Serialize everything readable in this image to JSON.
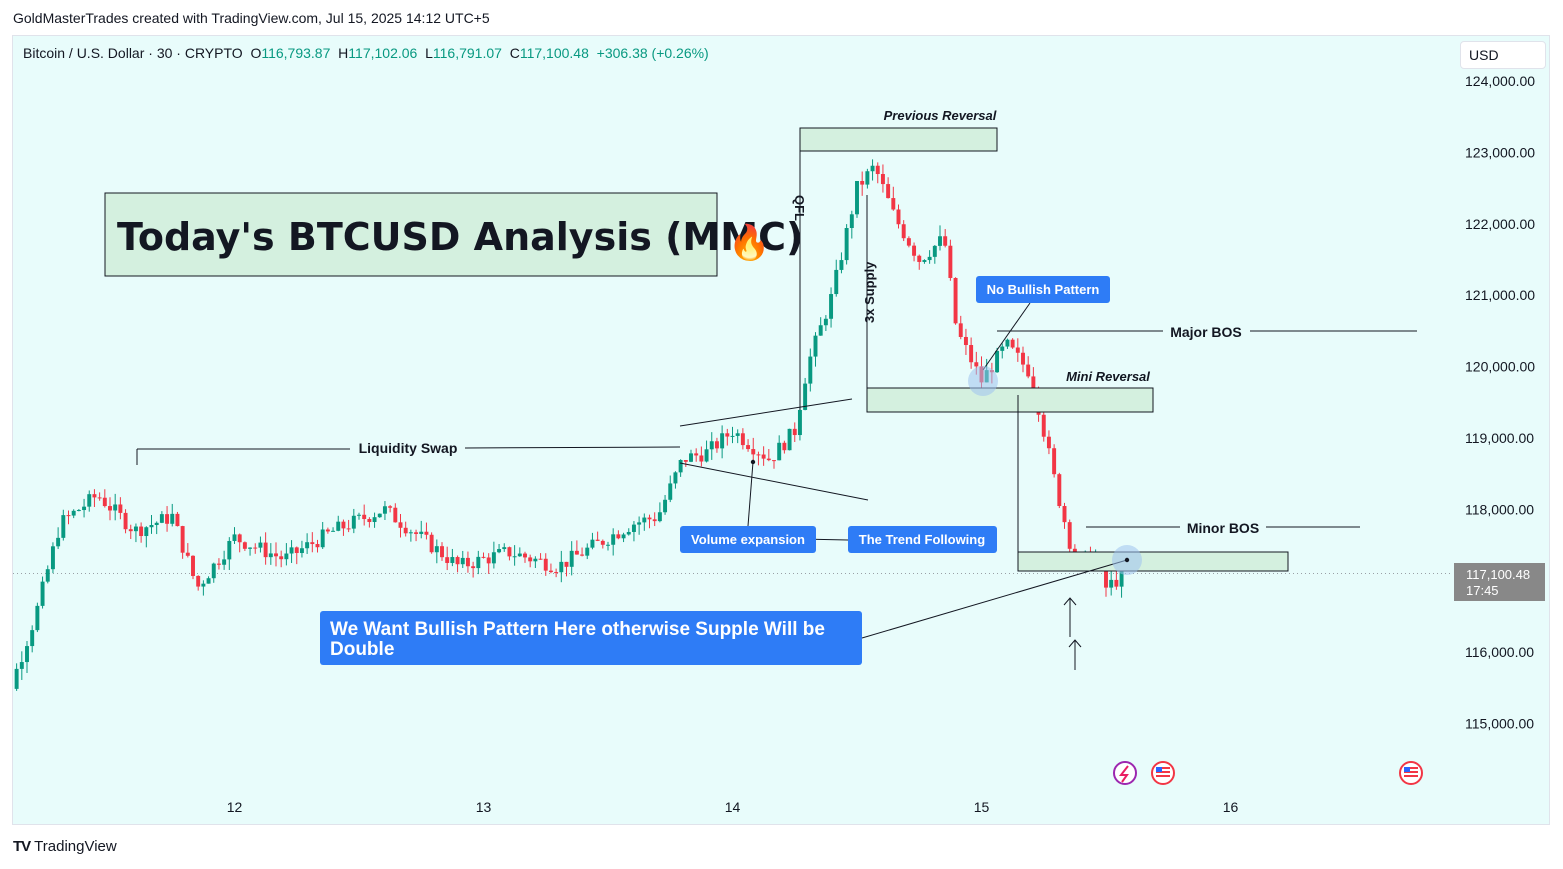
{
  "credit": "GoldMasterTrades created with TradingView.com, Jul 15, 2025 14:12 UTC+5",
  "legend": {
    "symbol": "Bitcoin / U.S. Dollar · 30 · CRYPTO",
    "o_label": "O",
    "o": "116,793.87",
    "h_label": "H",
    "h": "117,102.06",
    "l_label": "L",
    "l": "116,791.07",
    "c_label": "C",
    "c": "117,100.48",
    "change": "+306.38 (+0.26%)"
  },
  "currency": "USD",
  "footer": {
    "logo_mark": "TV",
    "brand": "TradingView"
  },
  "price_label": {
    "price": "117,100.48",
    "countdown": "17:45"
  },
  "colors": {
    "up": "#089981",
    "down": "#f23645",
    "background": "#e8fcfb",
    "zone_fill": "#d4f0df",
    "callout": "#2e7cf6"
  },
  "chart_data": {
    "type": "candlestick",
    "title": "Today's BTCUSD Analysis (MMC)",
    "title_emoji": "🔥",
    "ylim": [
      114000,
      124500
    ],
    "y_ticks": [
      "124,000.00",
      "123,000.00",
      "122,000.00",
      "121,000.00",
      "120,000.00",
      "119,000.00",
      "118,000.00",
      "116,000.00",
      "115,000.00"
    ],
    "y_tick_values": [
      124000,
      123000,
      122000,
      121000,
      120000,
      119000,
      118000,
      116000,
      115000
    ],
    "x_ticks": [
      "12",
      "13",
      "14",
      "15",
      "16"
    ],
    "x_tick_days": [
      12,
      13,
      14,
      15,
      16
    ],
    "timeframe_minutes": 30,
    "last_price": 117100.48,
    "close_path": [
      {
        "day": 11.0,
        "price": 116100
      },
      {
        "day": 11.1,
        "price": 115500
      },
      {
        "day": 11.2,
        "price": 116500
      },
      {
        "day": 11.3,
        "price": 117800
      },
      {
        "day": 11.45,
        "price": 118200
      },
      {
        "day": 11.6,
        "price": 117700
      },
      {
        "day": 11.75,
        "price": 117900
      },
      {
        "day": 11.85,
        "price": 116900
      },
      {
        "day": 12.0,
        "price": 117600
      },
      {
        "day": 12.2,
        "price": 117300
      },
      {
        "day": 12.4,
        "price": 117700
      },
      {
        "day": 12.6,
        "price": 118000
      },
      {
        "day": 12.75,
        "price": 117600
      },
      {
        "day": 12.9,
        "price": 117200
      },
      {
        "day": 13.1,
        "price": 117400
      },
      {
        "day": 13.3,
        "price": 117200
      },
      {
        "day": 13.45,
        "price": 117500
      },
      {
        "day": 13.6,
        "price": 117800
      },
      {
        "day": 13.7,
        "price": 117900
      },
      {
        "day": 13.8,
        "price": 118700
      },
      {
        "day": 13.9,
        "price": 118800
      },
      {
        "day": 14.0,
        "price": 119100
      },
      {
        "day": 14.15,
        "price": 118700
      },
      {
        "day": 14.25,
        "price": 119100
      },
      {
        "day": 14.3,
        "price": 120000
      },
      {
        "day": 14.4,
        "price": 121000
      },
      {
        "day": 14.5,
        "price": 122500
      },
      {
        "day": 14.57,
        "price": 122800
      },
      {
        "day": 14.65,
        "price": 122100
      },
      {
        "day": 14.75,
        "price": 121500
      },
      {
        "day": 14.85,
        "price": 121800
      },
      {
        "day": 14.9,
        "price": 120500
      },
      {
        "day": 15.0,
        "price": 119800
      },
      {
        "day": 15.1,
        "price": 120300
      },
      {
        "day": 15.2,
        "price": 119900
      },
      {
        "day": 15.3,
        "price": 118300
      },
      {
        "day": 15.38,
        "price": 117200
      },
      {
        "day": 15.45,
        "price": 117400
      },
      {
        "day": 15.5,
        "price": 116900
      },
      {
        "day": 15.58,
        "price": 117100
      }
    ],
    "annotations": {
      "previous_reversal": "Previous Reversal",
      "qfl": "QFL",
      "supply": "3x Supply",
      "no_bullish": "No Bullish Pattern",
      "major_bos": "Major BOS",
      "mini_reversal": "Mini Reversal",
      "liquidity_swap": "Liquidity Swap",
      "volume_expansion": "Volume expansion",
      "trend_following": "The Trend Following",
      "minor_bos": "Minor BOS",
      "bullish_pattern_note": "We Want Bullish Pattern Here otherwise Supple Will be Double"
    },
    "levels": {
      "previous_reversal_zone": [
        123000,
        123300
      ],
      "mini_reversal_zone": [
        119350,
        119700
      ],
      "minor_bos_zone": [
        117100,
        117400
      ],
      "major_bos": 120500,
      "minor_bos": 117700,
      "liquidity_swap": 118800
    }
  }
}
